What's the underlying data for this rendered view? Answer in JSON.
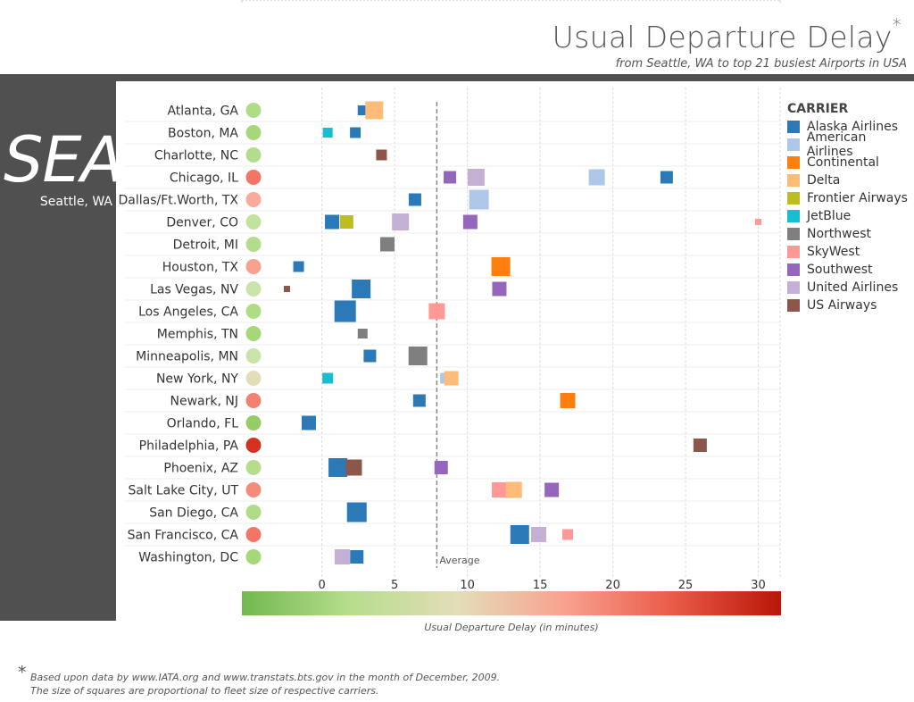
{
  "header": {
    "title": "Usual Departure Delay",
    "title_mark": "*",
    "subtitle": "from Seattle, WA to top 21 busiest Airports in USA"
  },
  "origin": {
    "code": "SEA",
    "city": "Seattle, WA"
  },
  "legend": {
    "title": "CARRIER",
    "items": [
      {
        "name": "Alaska Airlines",
        "color": "#2c79b8"
      },
      {
        "name": "American Airlines",
        "color": "#aec7e8"
      },
      {
        "name": "Continental",
        "color": "#ff7f0e"
      },
      {
        "name": "Delta",
        "color": "#ffbb78"
      },
      {
        "name": "Frontier Airways",
        "color": "#bcbd22"
      },
      {
        "name": "JetBlue",
        "color": "#17becf"
      },
      {
        "name": "Northwest",
        "color": "#7f7f7f"
      },
      {
        "name": "SkyWest",
        "color": "#ff9896"
      },
      {
        "name": "Southwest",
        "color": "#9467bd"
      },
      {
        "name": "United Airlines",
        "color": "#c5b0d5"
      },
      {
        "name": "US Airways",
        "color": "#8c564b"
      }
    ]
  },
  "colorbar": {
    "caption": "Usual Departure Delay (in minutes)",
    "stops": [
      "#72b84f",
      "#b6dd8c",
      "#e3ddb8",
      "#f9a18f",
      "#ea5a48",
      "#b91607"
    ]
  },
  "footnote": {
    "mark": "*",
    "line1": "Based upon data by www.IATA.org and www.transtats.bts.gov in the month of December, 2009.",
    "line2": "The size of squares are proportional to fleet size of respective carriers."
  },
  "chart_data": {
    "type": "scatter",
    "xlim": [
      -5.5,
      31.5
    ],
    "x_ticks": [
      0,
      5,
      10,
      15,
      20,
      25,
      30
    ],
    "average": {
      "value": 7.9,
      "label": "Average"
    },
    "categories": [
      "Atlanta, GA",
      "Boston, MA",
      "Charlotte, NC",
      "Chicago, IL",
      "Dallas/Ft.Worth, TX",
      "Denver, CO",
      "Detroit, MI",
      "Houston, TX",
      "Las Vegas, NV",
      "Los Angeles, CA",
      "Memphis, TN",
      "Minneapolis, MN",
      "New York, NY",
      "Newark, NJ",
      "Orlando, FL",
      "Philadelphia, PA",
      "Phoenix, AZ",
      "Salt Lake City, UT",
      "San Diego, CA",
      "San Francisco, CA",
      "Washington, DC"
    ],
    "airport_delay_color": [
      "#b0dc88",
      "#a6d779",
      "#b3dd8c",
      "#f47566",
      "#f9aa9a",
      "#c2e2a0",
      "#b3dd8c",
      "#f9a18f",
      "#c8e4a8",
      "#b0dc88",
      "#a6d779",
      "#c8e4a8",
      "#e3ddb8",
      "#f4806f",
      "#96cc68",
      "#d2321f",
      "#b6dd8c",
      "#f58b7b",
      "#b0dc88",
      "#f47566",
      "#a6d779"
    ],
    "points": [
      {
        "airport": 0,
        "carrier": "Alaska Airlines",
        "x": 2.8,
        "size": 11
      },
      {
        "airport": 0,
        "carrier": "Delta",
        "x": 3.6,
        "size": 20
      },
      {
        "airport": 1,
        "carrier": "JetBlue",
        "x": 0.4,
        "size": 11
      },
      {
        "airport": 1,
        "carrier": "Alaska Airlines",
        "x": 2.3,
        "size": 12
      },
      {
        "airport": 2,
        "carrier": "US Airways",
        "x": 4.1,
        "size": 12
      },
      {
        "airport": 3,
        "carrier": "Southwest",
        "x": 8.8,
        "size": 14
      },
      {
        "airport": 3,
        "carrier": "United Airlines",
        "x": 10.6,
        "size": 19
      },
      {
        "airport": 3,
        "carrier": "American Airlines",
        "x": 18.9,
        "size": 18
      },
      {
        "airport": 3,
        "carrier": "Alaska Airlines",
        "x": 23.7,
        "size": 14
      },
      {
        "airport": 4,
        "carrier": "Alaska Airlines",
        "x": 6.4,
        "size": 14
      },
      {
        "airport": 4,
        "carrier": "American Airlines",
        "x": 10.8,
        "size": 22
      },
      {
        "airport": 5,
        "carrier": "Alaska Airlines",
        "x": 0.7,
        "size": 16
      },
      {
        "airport": 5,
        "carrier": "Frontier Airways",
        "x": 1.7,
        "size": 15
      },
      {
        "airport": 5,
        "carrier": "United Airlines",
        "x": 5.4,
        "size": 19
      },
      {
        "airport": 5,
        "carrier": "Southwest",
        "x": 10.2,
        "size": 16
      },
      {
        "airport": 5,
        "carrier": "SkyWest",
        "x": 30.0,
        "size": 7
      },
      {
        "airport": 6,
        "carrier": "Northwest",
        "x": 4.5,
        "size": 16
      },
      {
        "airport": 7,
        "carrier": "Alaska Airlines",
        "x": -1.6,
        "size": 12
      },
      {
        "airport": 7,
        "carrier": "Continental",
        "x": 12.3,
        "size": 21
      },
      {
        "airport": 8,
        "carrier": "US Airways",
        "x": -2.4,
        "size": 7
      },
      {
        "airport": 8,
        "carrier": "Alaska Airlines",
        "x": 2.7,
        "size": 21
      },
      {
        "airport": 8,
        "carrier": "Southwest",
        "x": 12.2,
        "size": 16
      },
      {
        "airport": 9,
        "carrier": "Alaska Airlines",
        "x": 1.6,
        "size": 24
      },
      {
        "airport": 9,
        "carrier": "SkyWest",
        "x": 7.9,
        "size": 18
      },
      {
        "airport": 10,
        "carrier": "Northwest",
        "x": 2.8,
        "size": 11
      },
      {
        "airport": 11,
        "carrier": "Alaska Airlines",
        "x": 3.3,
        "size": 14
      },
      {
        "airport": 11,
        "carrier": "Northwest",
        "x": 6.6,
        "size": 21
      },
      {
        "airport": 12,
        "carrier": "JetBlue",
        "x": 0.4,
        "size": 12
      },
      {
        "airport": 12,
        "carrier": "American Airlines",
        "x": 8.5,
        "size": 12
      },
      {
        "airport": 12,
        "carrier": "Delta",
        "x": 8.9,
        "size": 16
      },
      {
        "airport": 13,
        "carrier": "Alaska Airlines",
        "x": 6.7,
        "size": 14
      },
      {
        "airport": 13,
        "carrier": "Continental",
        "x": 16.9,
        "size": 17
      },
      {
        "airport": 14,
        "carrier": "Alaska Airlines",
        "x": -0.9,
        "size": 16
      },
      {
        "airport": 15,
        "carrier": "US Airways",
        "x": 26.0,
        "size": 15
      },
      {
        "airport": 16,
        "carrier": "Alaska Airlines",
        "x": 1.1,
        "size": 21
      },
      {
        "airport": 16,
        "carrier": "US Airways",
        "x": 2.2,
        "size": 18
      },
      {
        "airport": 16,
        "carrier": "Southwest",
        "x": 8.2,
        "size": 15
      },
      {
        "airport": 17,
        "carrier": "SkyWest",
        "x": 12.2,
        "size": 17
      },
      {
        "airport": 17,
        "carrier": "Delta",
        "x": 13.2,
        "size": 18
      },
      {
        "airport": 17,
        "carrier": "Southwest",
        "x": 15.8,
        "size": 16
      },
      {
        "airport": 18,
        "carrier": "Alaska Airlines",
        "x": 2.4,
        "size": 22
      },
      {
        "airport": 19,
        "carrier": "Alaska Airlines",
        "x": 13.6,
        "size": 21
      },
      {
        "airport": 19,
        "carrier": "United Airlines",
        "x": 14.9,
        "size": 17
      },
      {
        "airport": 19,
        "carrier": "SkyWest",
        "x": 16.9,
        "size": 12
      },
      {
        "airport": 20,
        "carrier": "United Airlines",
        "x": 1.4,
        "size": 17
      },
      {
        "airport": 20,
        "carrier": "Alaska Airlines",
        "x": 2.4,
        "size": 15
      }
    ]
  }
}
